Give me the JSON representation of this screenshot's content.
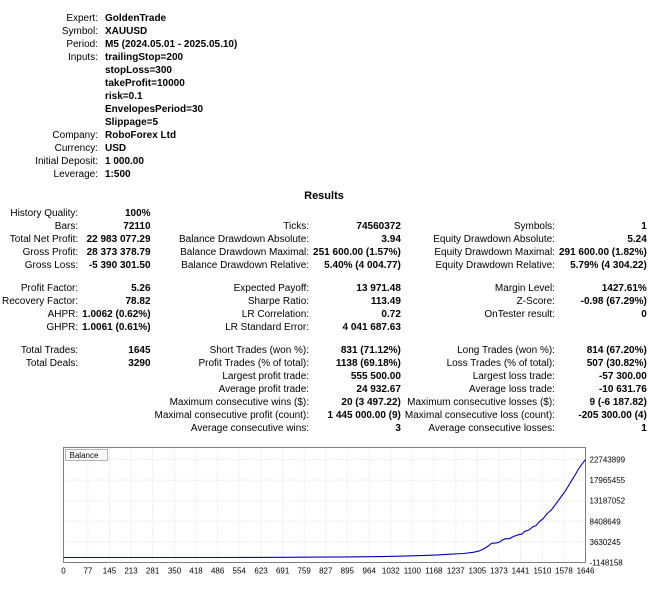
{
  "header": {
    "rows": [
      {
        "label": "Expert:",
        "value": "GoldenTrade"
      },
      {
        "label": "Symbol:",
        "value": "XAUUSD"
      },
      {
        "label": "Period:",
        "value": "M5 (2024.05.01 - 2025.05.10)"
      },
      {
        "label": "Inputs:",
        "value": "trailingStop=200"
      },
      {
        "label": "",
        "value": "stopLoss=300"
      },
      {
        "label": "",
        "value": "takeProfit=10000"
      },
      {
        "label": "",
        "value": "risk=0.1"
      },
      {
        "label": "",
        "value": "EnvelopesPeriod=30"
      },
      {
        "label": "",
        "value": "Slippage=5"
      },
      {
        "label": "Company:",
        "value": "RoboForex Ltd"
      },
      {
        "label": "Currency:",
        "value": "USD"
      },
      {
        "label": "Initial Deposit:",
        "value": "1 000.00"
      },
      {
        "label": "Leverage:",
        "value": "1:500"
      }
    ]
  },
  "results": {
    "title": "Results",
    "rows": [
      [
        "History Quality:",
        "100%",
        "",
        "",
        "",
        ""
      ],
      [
        "Bars:",
        "72110",
        "Ticks:",
        "74560372",
        "Symbols:",
        "1"
      ],
      [
        "Total Net Profit:",
        "22 983 077.29",
        "Balance Drawdown Absolute:",
        "3.94",
        "Equity Drawdown Absolute:",
        "5.24"
      ],
      [
        "Gross Profit:",
        "28 373 378.79",
        "Balance Drawdown Maximal:",
        "251 600.00 (1.57%)",
        "Equity Drawdown Maximal:",
        "291 600.00 (1.82%)"
      ],
      [
        "Gross Loss:",
        "-5 390 301.50",
        "Balance Drawdown Relative:",
        "5.40% (4 004.77)",
        "Equity Drawdown Relative:",
        "5.79% (4 304.22)"
      ],
      [
        "",
        "",
        "",
        "",
        "",
        ""
      ],
      [
        "Profit Factor:",
        "5.26",
        "Expected Payoff:",
        "13 971.48",
        "Margin Level:",
        "1427.61%"
      ],
      [
        "Recovery Factor:",
        "78.82",
        "Sharpe Ratio:",
        "113.49",
        "Z-Score:",
        "-0.98 (67.29%)"
      ],
      [
        "AHPR:",
        "1.0062 (0.62%)",
        "LR Correlation:",
        "0.72",
        "OnTester result:",
        "0"
      ],
      [
        "GHPR:",
        "1.0061 (0.61%)",
        "LR Standard Error:",
        "4 041 687.63",
        "",
        ""
      ],
      [
        "",
        "",
        "",
        "",
        "",
        ""
      ],
      [
        "Total Trades:",
        "1645",
        "Short Trades (won %):",
        "831 (71.12%)",
        "Long Trades (won %):",
        "814 (67.20%)"
      ],
      [
        "Total Deals:",
        "3290",
        "Profit Trades (% of total):",
        "1138 (69.18%)",
        "Loss Trades (% of total):",
        "507 (30.82%)"
      ],
      [
        "",
        "",
        "Largest profit trade:",
        "555 500.00",
        "Largest loss trade:",
        "-57 300.00"
      ],
      [
        "",
        "",
        "Average profit trade:",
        "24 932.67",
        "Average loss trade:",
        "-10 631.76"
      ],
      [
        "",
        "",
        "Maximum consecutive wins ($):",
        "20 (3 497.22)",
        "Maximum consecutive losses ($):",
        "9 (-6 187.82)"
      ],
      [
        "",
        "",
        "Maximal consecutive profit (count):",
        "1 445 000.00 (9)",
        "Maximal consecutive loss (count):",
        "-205 300.00 (4)"
      ],
      [
        "",
        "",
        "Average consecutive wins:",
        "3",
        "Average consecutive losses:",
        "1"
      ]
    ]
  },
  "chart_data": {
    "type": "line",
    "title": "Balance",
    "legend_position": "top-left",
    "grid": true,
    "line_color": "#0404b4",
    "xlim": [
      0,
      1646
    ],
    "ylim": [
      -1148158,
      25530000
    ],
    "x_ticks": [
      0,
      77,
      145,
      213,
      281,
      350,
      418,
      486,
      554,
      623,
      691,
      759,
      827,
      895,
      964,
      1032,
      1100,
      1168,
      1237,
      1305,
      1373,
      1441,
      1510,
      1578,
      1646
    ],
    "y_ticks": [
      22743899,
      17965455,
      13187052,
      8408649,
      3630245,
      -1148158
    ],
    "series": [
      {
        "name": "Balance",
        "points": [
          [
            0,
            1000
          ],
          [
            150,
            2500
          ],
          [
            300,
            6000
          ],
          [
            450,
            15000
          ],
          [
            600,
            35000
          ],
          [
            700,
            60000
          ],
          [
            800,
            95000
          ],
          [
            900,
            150000
          ],
          [
            1000,
            230000
          ],
          [
            1060,
            320000
          ],
          [
            1100,
            400000
          ],
          [
            1140,
            500000
          ],
          [
            1180,
            620000
          ],
          [
            1220,
            780000
          ],
          [
            1260,
            950000
          ],
          [
            1290,
            1200000
          ],
          [
            1310,
            1500000
          ],
          [
            1325,
            2000000
          ],
          [
            1340,
            2700000
          ],
          [
            1350,
            3300000
          ],
          [
            1365,
            3400000
          ],
          [
            1375,
            3600000
          ],
          [
            1385,
            4100000
          ],
          [
            1395,
            4400000
          ],
          [
            1405,
            4350000
          ],
          [
            1420,
            4900000
          ],
          [
            1435,
            5300000
          ],
          [
            1445,
            5450000
          ],
          [
            1455,
            6100000
          ],
          [
            1465,
            6300000
          ],
          [
            1480,
            7100000
          ],
          [
            1490,
            7400000
          ],
          [
            1500,
            8300000
          ],
          [
            1512,
            9000000
          ],
          [
            1525,
            10200000
          ],
          [
            1538,
            11000000
          ],
          [
            1550,
            12200000
          ],
          [
            1562,
            13400000
          ],
          [
            1572,
            14400000
          ],
          [
            1582,
            15400000
          ],
          [
            1592,
            16600000
          ],
          [
            1602,
            17800000
          ],
          [
            1612,
            19000000
          ],
          [
            1622,
            20300000
          ],
          [
            1632,
            21400000
          ],
          [
            1640,
            22200000
          ],
          [
            1646,
            22743899
          ]
        ]
      }
    ]
  }
}
